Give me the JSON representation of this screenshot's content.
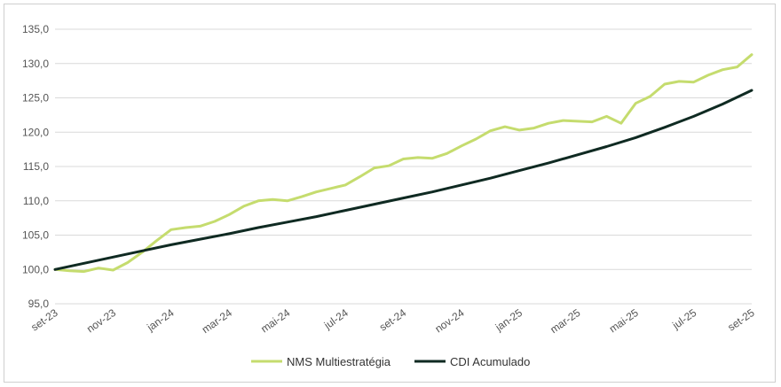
{
  "chart_data": {
    "type": "line",
    "title": "",
    "xlabel": "",
    "ylabel": "",
    "ylim": [
      95,
      135
    ],
    "yticks": [
      95,
      100,
      105,
      110,
      115,
      120,
      125,
      130,
      135
    ],
    "ytick_labels": [
      "95,0",
      "100,0",
      "105,0",
      "110,0",
      "115,0",
      "120,0",
      "125,0",
      "130,0",
      "135,0"
    ],
    "x_tick_labels": [
      "set-23",
      "nov-23",
      "jan-24",
      "mar-24",
      "mai-24",
      "jul-24",
      "set-24",
      "nov-24",
      "jan-25",
      "mar-25",
      "mai-25",
      "jul-25",
      "set-25"
    ],
    "grid": "horizontal",
    "legend_position": "bottom-center",
    "series": [
      {
        "name": "NMS Multiestratégia",
        "color": "#c5dc6e",
        "x": [
          0,
          0.5,
          1,
          1.5,
          2,
          2.5,
          3,
          3.5,
          4,
          4.5,
          5,
          5.5,
          6,
          6.5,
          7,
          7.5,
          8,
          8.5,
          9,
          9.5,
          10,
          10.5,
          11,
          11.5,
          12,
          12.5,
          13,
          13.5,
          14,
          14.5,
          15,
          15.5,
          16,
          16.5,
          17,
          17.5,
          18,
          18.5,
          19,
          19.5,
          20,
          20.5,
          21,
          21.5,
          22,
          22.5,
          23,
          23.5,
          24
        ],
        "values": [
          100.0,
          99.8,
          99.7,
          100.2,
          99.9,
          101.0,
          102.5,
          104.2,
          105.8,
          106.1,
          106.3,
          107.0,
          108.0,
          109.2,
          110.0,
          110.2,
          110.0,
          110.6,
          111.3,
          111.8,
          112.3,
          113.5,
          114.8,
          115.1,
          116.1,
          116.3,
          116.2,
          116.9,
          118.0,
          119.0,
          120.2,
          120.8,
          120.3,
          120.6,
          121.3,
          121.7,
          121.6,
          121.5,
          122.3,
          121.3,
          124.2,
          125.2,
          127.0,
          127.4,
          127.3,
          128.3,
          129.1,
          129.5,
          131.3
        ]
      },
      {
        "name": "CDI Acumulado",
        "color": "#0f2a22",
        "x": [
          0,
          1,
          2,
          3,
          4,
          5,
          6,
          7,
          8,
          9,
          10,
          11,
          12,
          13,
          14,
          15,
          16,
          17,
          18,
          19,
          20,
          21,
          22,
          23,
          24
        ],
        "values": [
          100.0,
          100.9,
          101.8,
          102.7,
          103.6,
          104.4,
          105.2,
          106.1,
          106.9,
          107.7,
          108.6,
          109.5,
          110.4,
          111.3,
          112.3,
          113.3,
          114.4,
          115.5,
          116.7,
          117.9,
          119.2,
          120.7,
          122.3,
          124.1,
          126.1
        ]
      }
    ]
  }
}
